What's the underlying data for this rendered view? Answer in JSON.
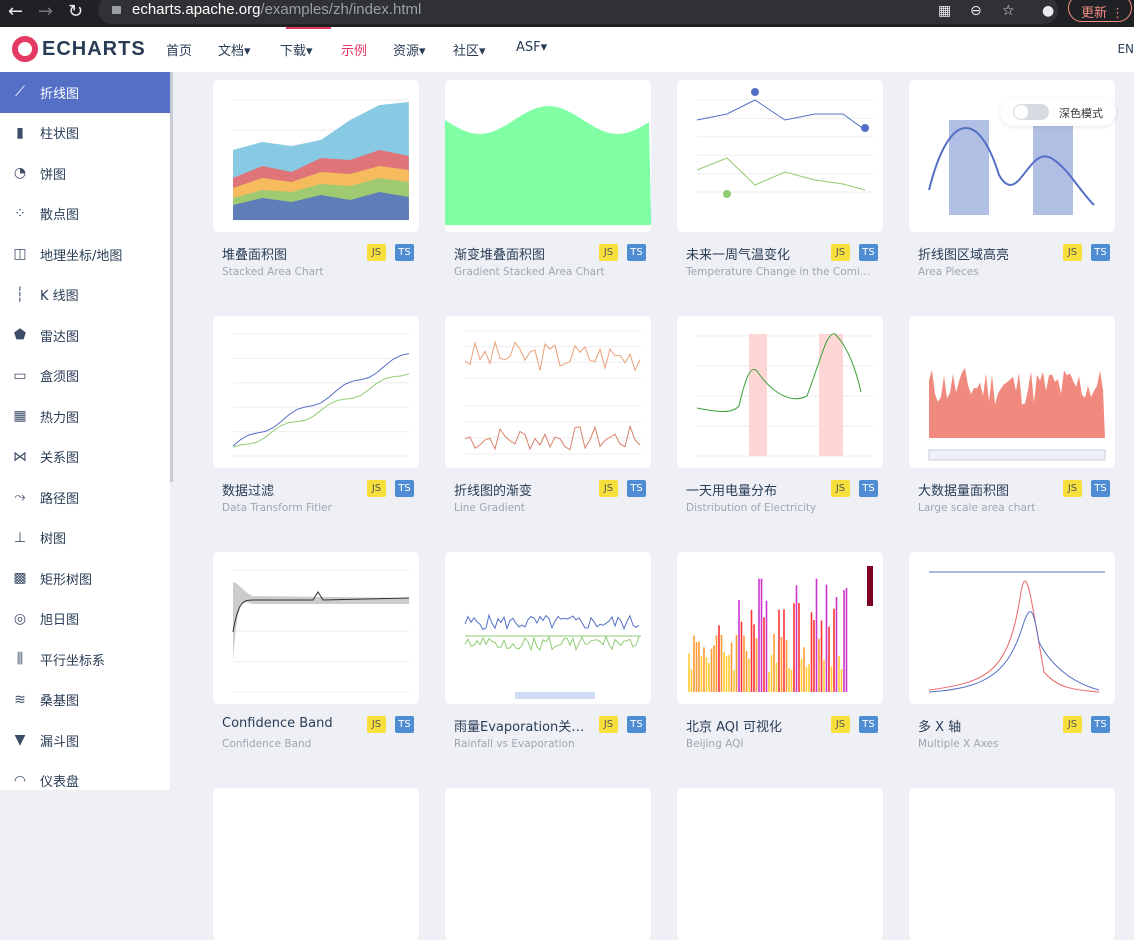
{
  "browser": {
    "url_host": "echarts.apache.org",
    "url_path": "/examples/zh/index.html",
    "update_label": "更新"
  },
  "nav": {
    "logo": "ECHARTS",
    "items": [
      {
        "label": "首页"
      },
      {
        "label": "文档▾"
      },
      {
        "label": "下载▾"
      },
      {
        "label": "示例",
        "active": true
      },
      {
        "label": "资源▾"
      },
      {
        "label": "社区▾"
      },
      {
        "label": "ASF▾"
      }
    ],
    "lang": "EN"
  },
  "sidebar": {
    "items": [
      {
        "label": "折线图",
        "icon": "line-chart-icon",
        "glyph": "⟋",
        "active": true
      },
      {
        "label": "柱状图",
        "icon": "bar-chart-icon",
        "glyph": "▮"
      },
      {
        "label": "饼图",
        "icon": "pie-chart-icon",
        "glyph": "◔"
      },
      {
        "label": "散点图",
        "icon": "scatter-icon",
        "glyph": "⁘"
      },
      {
        "label": "地理坐标/地图",
        "icon": "map-icon",
        "glyph": "◫"
      },
      {
        "label": "K 线图",
        "icon": "candlestick-icon",
        "glyph": "┆"
      },
      {
        "label": "雷达图",
        "icon": "radar-icon",
        "glyph": "⬟"
      },
      {
        "label": "盒须图",
        "icon": "boxplot-icon",
        "glyph": "▭"
      },
      {
        "label": "热力图",
        "icon": "heatmap-icon",
        "glyph": "▦"
      },
      {
        "label": "关系图",
        "icon": "graph-icon",
        "glyph": "⋈"
      },
      {
        "label": "路径图",
        "icon": "lines-icon",
        "glyph": "⤳"
      },
      {
        "label": "树图",
        "icon": "tree-icon",
        "glyph": "⊥"
      },
      {
        "label": "矩形树图",
        "icon": "treemap-icon",
        "glyph": "▩"
      },
      {
        "label": "旭日图",
        "icon": "sunburst-icon",
        "glyph": "◎"
      },
      {
        "label": "平行坐标系",
        "icon": "parallel-icon",
        "glyph": "⫼"
      },
      {
        "label": "桑基图",
        "icon": "sankey-icon",
        "glyph": "≋"
      },
      {
        "label": "漏斗图",
        "icon": "funnel-icon",
        "glyph": "▼"
      },
      {
        "label": "仪表盘",
        "icon": "gauge-icon",
        "glyph": "◠"
      }
    ]
  },
  "dark_mode": {
    "label": "深色模式",
    "on": false
  },
  "badges": {
    "js": "JS",
    "ts": "TS"
  },
  "cards": [
    {
      "title": "堆叠面积图",
      "subtitle": "Stacked Area Chart",
      "kind": "stacked"
    },
    {
      "title": "渐变堆叠面积图",
      "subtitle": "Gradient Stacked Area Chart",
      "kind": "gradient"
    },
    {
      "title": "未来一周气温变化",
      "subtitle": "Temperature Change in the Coming Week",
      "kind": "temp"
    },
    {
      "title": "折线图区域高亮",
      "subtitle": "Area Pieces",
      "kind": "pieces"
    },
    {
      "title": "数据过滤",
      "subtitle": "Data Transform Fitler",
      "kind": "filter"
    },
    {
      "title": "折线图的渐变",
      "subtitle": "Line Gradient",
      "kind": "linegrad"
    },
    {
      "title": "一天用电量分布",
      "subtitle": "Distribution of Electricity",
      "kind": "elec"
    },
    {
      "title": "大数据量面积图",
      "subtitle": "Large scale area chart",
      "kind": "large"
    },
    {
      "title": "Confidence Band",
      "subtitle": "Confidence Band",
      "kind": "band"
    },
    {
      "title": "雨量Evaporation关系图",
      "subtitle": "Rainfall vs Evaporation",
      "kind": "rain"
    },
    {
      "title": "北京 AQI 可视化",
      "subtitle": "Beijing AQI",
      "kind": "aqi"
    },
    {
      "title": "多 X 轴",
      "subtitle": "Multiple X Axes",
      "kind": "multix"
    },
    {
      "title": "",
      "subtitle": "",
      "kind": "empty"
    },
    {
      "title": "",
      "subtitle": "",
      "kind": "empty"
    },
    {
      "title": "",
      "subtitle": "",
      "kind": "empty"
    },
    {
      "title": "",
      "subtitle": "",
      "kind": "empty"
    }
  ],
  "colors": {
    "accent": "#e43961",
    "sidebar_active": "#5470c6",
    "js_badge": "#f7e03c",
    "ts_badge": "#4e8cd3"
  }
}
